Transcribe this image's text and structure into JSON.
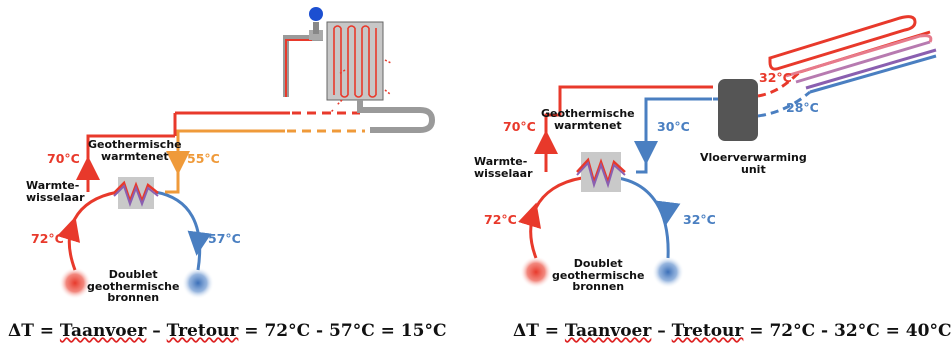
{
  "colors": {
    "hot": "#e8392b",
    "cold": "#4a7fc1",
    "warm": "#ef9a3a",
    "pink": "#e77b8c",
    "purple": "#8a5fb0",
    "exchanger": "#c9c9c9",
    "unit": "#555555",
    "pipe_grey": "#9a9a9a"
  },
  "left": {
    "label_net": "Geothermische\nwarmtenet",
    "label_exchanger": "Warmte-\nwisselaar",
    "label_doublet": "Doublet\ngeothermische\nbronnen",
    "temp_supply": "70°C",
    "temp_secondary": "55°C",
    "temp_well_hot": "72°C",
    "temp_well_return": "57°C",
    "formula": {
      "prefix": "ΔT = ",
      "t1": "Taanvoer",
      "dash": " – ",
      "t2": "Tretour",
      "rest": " = 72°C - 57°C = 15°C"
    }
  },
  "right": {
    "label_net": "Geothermische\nwarmtenet",
    "label_exchanger": "Warmte-\nwisselaar",
    "label_doublet": "Doublet\ngeothermische\nbronnen",
    "label_unit": "Vloerverwarming\nunit",
    "temp_supply": "70°C",
    "temp_secondary": "30°C",
    "temp_floor_in": "32°C",
    "temp_floor_out": "28°C",
    "temp_well_hot": "72°C",
    "temp_well_return": "32°C",
    "formula": {
      "prefix": "ΔT = ",
      "t1": "Taanvoer",
      "dash": " – ",
      "t2": "Tretour",
      "rest": " = 72°C - 32°C = 40°C"
    }
  }
}
